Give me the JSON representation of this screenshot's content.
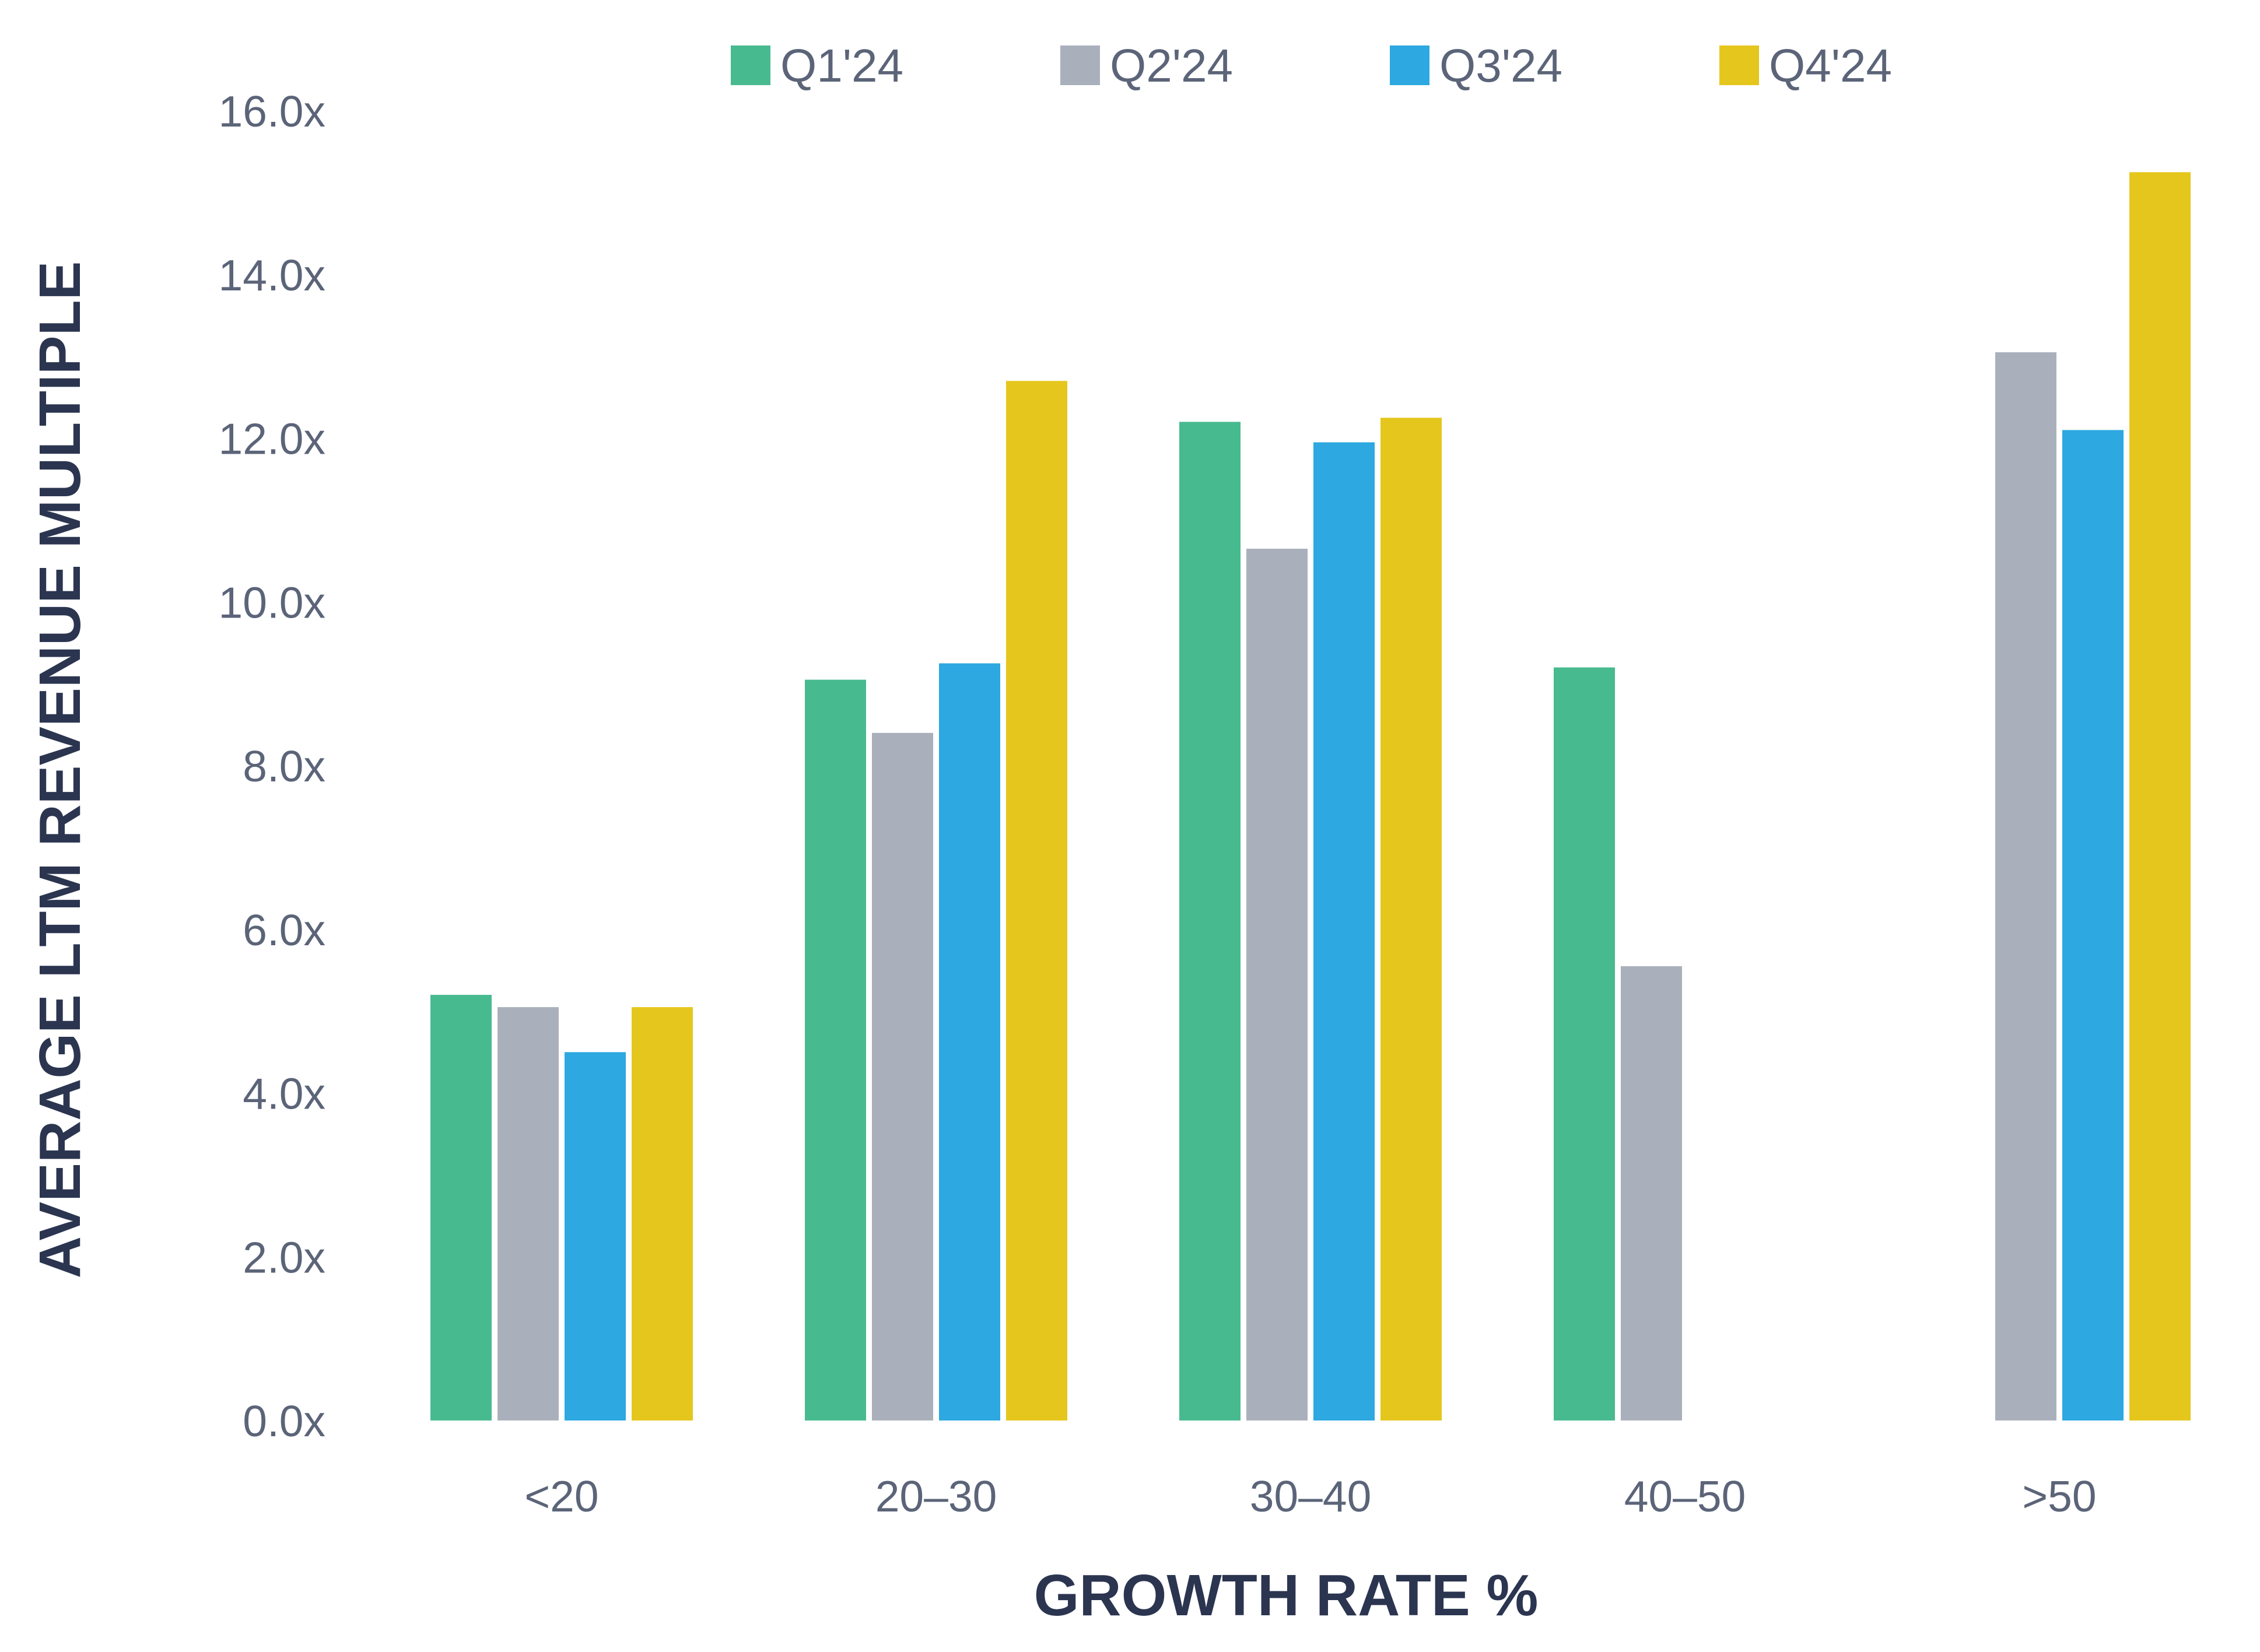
{
  "chart_data": {
    "type": "bar",
    "title": "",
    "xlabel": "GROWTH RATE %",
    "ylabel": "AVERAGE LTM REVENUE MULTIPLE",
    "categories": [
      "<20",
      "20–30",
      "30–40",
      "40–50",
      ">50"
    ],
    "series": [
      {
        "name": "Q1'24",
        "color": "#48ba8f",
        "values": [
          5.2,
          9.05,
          12.2,
          9.2,
          null
        ]
      },
      {
        "name": "Q2'24",
        "color": "#aab0bb",
        "values": [
          5.05,
          8.4,
          10.65,
          5.55,
          13.05
        ]
      },
      {
        "name": "Q3'24",
        "color": "#2da8e0",
        "values": [
          4.5,
          9.25,
          11.95,
          null,
          12.1
        ]
      },
      {
        "name": "Q4'24",
        "color": "#e5c61d",
        "values": [
          5.05,
          12.7,
          12.25,
          null,
          15.25
        ]
      }
    ],
    "yticks": [
      "0.0x",
      "2.0x",
      "4.0x",
      "6.0x",
      "8.0x",
      "10.0x",
      "12.0x",
      "14.0x",
      "16.0x"
    ],
    "ylim": [
      0,
      16
    ],
    "grid": false,
    "legend_position": "top",
    "axis_color": "#48ba8f"
  }
}
